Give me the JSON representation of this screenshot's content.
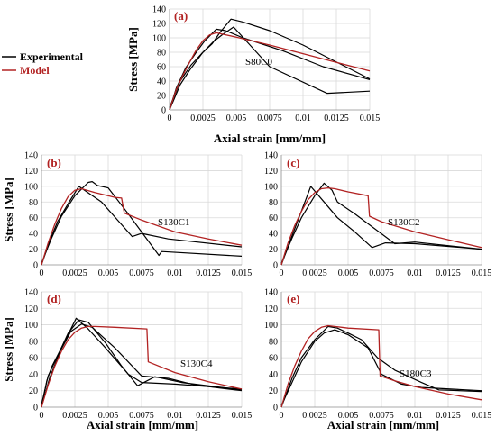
{
  "legend": {
    "experimental_label": "Experimental",
    "model_label": "Model",
    "experimental_color": "#000000",
    "model_color": "#b22222"
  },
  "chart_data": [
    {
      "type": "line",
      "letter": "(a)",
      "specimen": "S80C0",
      "xlabel": "Axial strain [mm/mm]",
      "ylabel": "Stress [MPa]",
      "xlim": [
        0,
        0.015
      ],
      "ylim": [
        0,
        140
      ],
      "xticks": [
        "0",
        "0.0025",
        "0.005",
        "0.0075",
        "0.01",
        "0.0125",
        "0.015"
      ],
      "yticks": [
        "0",
        "20",
        "40",
        "60",
        "80",
        "100",
        "120",
        "140"
      ],
      "series": [
        {
          "kind": "experimental",
          "points": [
            [
              0,
              0
            ],
            [
              0.0005,
              30
            ],
            [
              0.0012,
              58
            ],
            [
              0.002,
              80
            ],
            [
              0.0026,
              95
            ],
            [
              0.0035,
              112
            ],
            [
              0.0042,
              110
            ],
            [
              0.0055,
              100
            ],
            [
              0.0085,
              82
            ],
            [
              0.0115,
              60
            ],
            [
              0.015,
              42
            ]
          ]
        },
        {
          "kind": "experimental",
          "points": [
            [
              0,
              3
            ],
            [
              0.0008,
              40
            ],
            [
              0.0016,
              62
            ],
            [
              0.0024,
              78
            ],
            [
              0.0032,
              92
            ],
            [
              0.0038,
              108
            ],
            [
              0.0046,
              126
            ],
            [
              0.0055,
              122
            ],
            [
              0.0075,
              110
            ],
            [
              0.01,
              90
            ],
            [
              0.015,
              43
            ]
          ]
        },
        {
          "kind": "experimental",
          "points": [
            [
              0,
              0
            ],
            [
              0.0008,
              35
            ],
            [
              0.0015,
              55
            ],
            [
              0.0025,
              80
            ],
            [
              0.0033,
              95
            ],
            [
              0.004,
              105
            ],
            [
              0.0048,
              115
            ],
            [
              0.0075,
              60
            ],
            [
              0.0118,
              23
            ],
            [
              0.015,
              26
            ]
          ]
        },
        {
          "kind": "model",
          "points": [
            [
              0,
              0
            ],
            [
              0.0005,
              28
            ],
            [
              0.001,
              48
            ],
            [
              0.0015,
              66
            ],
            [
              0.002,
              83
            ],
            [
              0.0025,
              96
            ],
            [
              0.003,
              104
            ],
            [
              0.0035,
              107
            ],
            [
              0.004,
              105
            ],
            [
              0.005,
              101
            ],
            [
              0.0075,
              90
            ],
            [
              0.01,
              78
            ],
            [
              0.0125,
              66
            ],
            [
              0.015,
              54
            ]
          ]
        }
      ]
    },
    {
      "type": "line",
      "letter": "(b)",
      "specimen": "S130C1",
      "xlabel": "",
      "ylabel": "Stress [MPa]",
      "xlim": [
        0,
        0.015
      ],
      "ylim": [
        0,
        140
      ],
      "xticks": [
        "0",
        "0.0025",
        "0.005",
        "0.0075",
        "0.01",
        "0.0125",
        "0.015"
      ],
      "yticks": [
        "0",
        "20",
        "40",
        "60",
        "80",
        "100",
        "120",
        "140"
      ],
      "series": [
        {
          "kind": "experimental",
          "points": [
            [
              0,
              0
            ],
            [
              0.0006,
              30
            ],
            [
              0.0012,
              55
            ],
            [
              0.002,
              78
            ],
            [
              0.0028,
              100
            ],
            [
              0.0045,
              80
            ],
            [
              0.0068,
              36
            ],
            [
              0.0075,
              40
            ],
            [
              0.0095,
              33
            ],
            [
              0.015,
              23
            ]
          ]
        },
        {
          "kind": "experimental",
          "points": [
            [
              0,
              2
            ],
            [
              0.0007,
              32
            ],
            [
              0.0015,
              62
            ],
            [
              0.0025,
              88
            ],
            [
              0.0035,
              105
            ],
            [
              0.0038,
              106
            ],
            [
              0.0042,
              101
            ],
            [
              0.005,
              98
            ],
            [
              0.0065,
              65
            ],
            [
              0.0088,
              12
            ],
            [
              0.009,
              17
            ],
            [
              0.015,
              11
            ]
          ]
        },
        {
          "kind": "model",
          "points": [
            [
              0,
              0
            ],
            [
              0.0005,
              28
            ],
            [
              0.001,
              52
            ],
            [
              0.0015,
              72
            ],
            [
              0.002,
              87
            ],
            [
              0.0025,
              95
            ],
            [
              0.003,
              97
            ],
            [
              0.004,
              92
            ],
            [
              0.0055,
              86
            ],
            [
              0.006,
              85
            ],
            [
              0.0062,
              66
            ],
            [
              0.0075,
              57
            ],
            [
              0.01,
              42
            ],
            [
              0.0125,
              33
            ],
            [
              0.015,
              25
            ]
          ]
        }
      ]
    },
    {
      "type": "line",
      "letter": "(c)",
      "specimen": "S130C2",
      "xlabel": "",
      "ylabel": "",
      "xlim": [
        0,
        0.015
      ],
      "ylim": [
        0,
        140
      ],
      "xticks": [
        "0",
        "0.0025",
        "0.005",
        "0.0075",
        "0.01",
        "0.0125",
        "0.015"
      ],
      "yticks": [
        "0",
        "20",
        "40",
        "60",
        "80",
        "100",
        "120",
        "140"
      ],
      "series": [
        {
          "kind": "experimental",
          "points": [
            [
              0,
              0
            ],
            [
              0.0006,
              28
            ],
            [
              0.0012,
              55
            ],
            [
              0.0022,
              100
            ],
            [
              0.0032,
              80
            ],
            [
              0.0042,
              60
            ],
            [
              0.0055,
              42
            ],
            [
              0.0068,
              22
            ],
            [
              0.0078,
              28
            ],
            [
              0.01,
              27
            ],
            [
              0.015,
              20
            ]
          ]
        },
        {
          "kind": "experimental",
          "points": [
            [
              0,
              2
            ],
            [
              0.0008,
              34
            ],
            [
              0.0015,
              60
            ],
            [
              0.0025,
              88
            ],
            [
              0.0032,
              104
            ],
            [
              0.0038,
              95
            ],
            [
              0.0042,
              80
            ],
            [
              0.0055,
              65
            ],
            [
              0.0085,
              27
            ],
            [
              0.01,
              29
            ],
            [
              0.015,
              20
            ]
          ]
        },
        {
          "kind": "model",
          "points": [
            [
              0,
              0
            ],
            [
              0.0005,
              28
            ],
            [
              0.001,
              50
            ],
            [
              0.0015,
              68
            ],
            [
              0.002,
              83
            ],
            [
              0.0025,
              92
            ],
            [
              0.003,
              97
            ],
            [
              0.0035,
              98
            ],
            [
              0.004,
              97
            ],
            [
              0.005,
              93
            ],
            [
              0.0065,
              88
            ],
            [
              0.0066,
              62
            ],
            [
              0.0075,
              55
            ],
            [
              0.01,
              42
            ],
            [
              0.0125,
              32
            ],
            [
              0.015,
              22
            ]
          ]
        }
      ]
    },
    {
      "type": "line",
      "letter": "(d)",
      "specimen": "S130C4",
      "xlabel": "Axial strain [mm/mm]",
      "ylabel": "Stress [MPa]",
      "xlim": [
        0,
        0.015
      ],
      "ylim": [
        0,
        140
      ],
      "xticks": [
        "0",
        "0.0025",
        "0.005",
        "0.0075",
        "0.01",
        "0.0125",
        "0.015"
      ],
      "yticks": [
        "0",
        "20",
        "40",
        "60",
        "80",
        "100",
        "120",
        "140"
      ],
      "series": [
        {
          "kind": "experimental",
          "points": [
            [
              0,
              0
            ],
            [
              0.0004,
              32
            ],
            [
              0.0008,
              50
            ],
            [
              0.0015,
              72
            ],
            [
              0.0022,
              95
            ],
            [
              0.0026,
              108
            ],
            [
              0.0035,
              95
            ],
            [
              0.0048,
              72
            ],
            [
              0.0065,
              40
            ],
            [
              0.0075,
              30
            ],
            [
              0.01,
              28
            ],
            [
              0.015,
              22
            ]
          ]
        },
        {
          "kind": "experimental",
          "points": [
            [
              0,
              3
            ],
            [
              0.0005,
              38
            ],
            [
              0.0012,
              62
            ],
            [
              0.002,
              90
            ],
            [
              0.0028,
              106
            ],
            [
              0.0035,
              103
            ],
            [
              0.0048,
              78
            ],
            [
              0.006,
              50
            ],
            [
              0.0072,
              26
            ],
            [
              0.0085,
              37
            ],
            [
              0.0105,
              30
            ],
            [
              0.015,
              21
            ]
          ]
        },
        {
          "kind": "experimental",
          "points": [
            [
              0,
              0
            ],
            [
              0.0006,
              35
            ],
            [
              0.0014,
              68
            ],
            [
              0.0022,
              92
            ],
            [
              0.003,
              101
            ],
            [
              0.0038,
              97
            ],
            [
              0.0055,
              72
            ],
            [
              0.0075,
              38
            ],
            [
              0.0095,
              35
            ],
            [
              0.0115,
              27
            ],
            [
              0.015,
              20
            ]
          ]
        },
        {
          "kind": "model",
          "points": [
            [
              0,
              0
            ],
            [
              0.0005,
              27
            ],
            [
              0.001,
              50
            ],
            [
              0.0015,
              68
            ],
            [
              0.002,
              82
            ],
            [
              0.0025,
              91
            ],
            [
              0.003,
              96
            ],
            [
              0.0035,
              98
            ],
            [
              0.004,
              98
            ],
            [
              0.0055,
              97
            ],
            [
              0.0079,
              95
            ],
            [
              0.008,
              55
            ],
            [
              0.01,
              42
            ],
            [
              0.0125,
              31
            ],
            [
              0.015,
              22
            ]
          ]
        }
      ]
    },
    {
      "type": "line",
      "letter": "(e)",
      "specimen": "S180C3",
      "xlabel": "Axial strain [mm/mm]",
      "ylabel": "",
      "xlim": [
        0,
        0.015
      ],
      "ylim": [
        0,
        140
      ],
      "xticks": [
        "0",
        "0.0025",
        "0.005",
        "0.0075",
        "0.01",
        "0.0125",
        "0.015"
      ],
      "yticks": [
        "0",
        "20",
        "40",
        "60",
        "80",
        "100",
        "120",
        "140"
      ],
      "series": [
        {
          "kind": "experimental",
          "points": [
            [
              0,
              0
            ],
            [
              0.0008,
              35
            ],
            [
              0.0015,
              60
            ],
            [
              0.0025,
              82
            ],
            [
              0.0035,
              98
            ],
            [
              0.0042,
              96
            ],
            [
              0.005,
              90
            ],
            [
              0.006,
              82
            ],
            [
              0.0072,
              60
            ],
            [
              0.0085,
              45
            ],
            [
              0.0105,
              30
            ],
            [
              0.0118,
              21
            ],
            [
              0.015,
              19
            ]
          ]
        },
        {
          "kind": "experimental",
          "points": [
            [
              0,
              2
            ],
            [
              0.0008,
              30
            ],
            [
              0.0015,
              55
            ],
            [
              0.0025,
              80
            ],
            [
              0.0032,
              90
            ],
            [
              0.004,
              94
            ],
            [
              0.005,
              88
            ],
            [
              0.0065,
              72
            ],
            [
              0.0075,
              40
            ],
            [
              0.009,
              28
            ],
            [
              0.0105,
              24
            ],
            [
              0.015,
              20
            ]
          ]
        },
        {
          "kind": "model",
          "points": [
            [
              0,
              0
            ],
            [
              0.0005,
              28
            ],
            [
              0.001,
              50
            ],
            [
              0.0015,
              68
            ],
            [
              0.002,
              83
            ],
            [
              0.0025,
              92
            ],
            [
              0.003,
              97
            ],
            [
              0.0035,
              99
            ],
            [
              0.004,
              98
            ],
            [
              0.005,
              96
            ],
            [
              0.0073,
              94
            ],
            [
              0.0074,
              38
            ],
            [
              0.0085,
              32
            ],
            [
              0.01,
              25
            ],
            [
              0.0125,
              16
            ],
            [
              0.015,
              9
            ]
          ]
        }
      ]
    }
  ]
}
